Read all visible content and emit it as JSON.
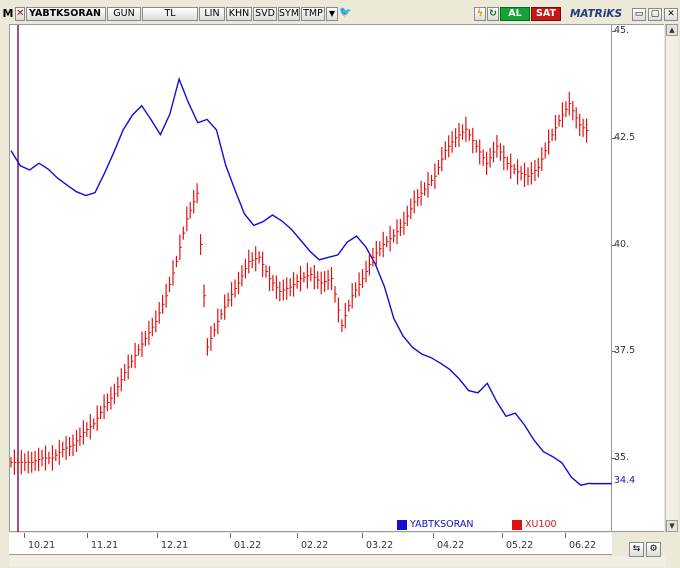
{
  "toolbar": {
    "menu_label": "M",
    "symbol": "YABTKSORAN",
    "period": "GUN",
    "currency": "TL",
    "scale": "LIN",
    "btn_khn": "KHN",
    "btn_svd": "SVD",
    "btn_sym": "SYM",
    "btn_tmp": "TMP",
    "buy_label": "AL",
    "sell_label": "SAT",
    "brand": "MATRiKS"
  },
  "colors": {
    "series1": "#1010d0",
    "series2": "#e01010",
    "buy": "#11a335",
    "sell": "#c41818"
  },
  "chart_data": {
    "type": "line",
    "x_tick_labels": [
      "10.21",
      "11.21",
      "12.21",
      "01.22",
      "02.22",
      "03.22",
      "04.22",
      "05.22",
      "06.22"
    ],
    "y_tick_labels": [
      "45.",
      "42.5",
      "40.",
      "37.5",
      "35."
    ],
    "ylim": [
      33.5,
      45.0
    ],
    "last_value_label": "34.4",
    "series": [
      {
        "name": "YABTKSORAN",
        "color": "#1010d0",
        "values": [
          42.2,
          41.8,
          41.7,
          41.9,
          41.8,
          41.6,
          41.4,
          41.2,
          41.1,
          41.2,
          41.7,
          42.2,
          42.7,
          43.0,
          43.2,
          42.9,
          42.6,
          43.1,
          43.9,
          43.3,
          42.8,
          42.9,
          42.7,
          41.9,
          41.3,
          40.7,
          40.4,
          40.5,
          40.7,
          40.6,
          40.4,
          40.1,
          39.8,
          39.6,
          39.7,
          39.8,
          40.1,
          40.2,
          39.9,
          39.5,
          39.0,
          38.3,
          37.9,
          37.6,
          37.4,
          37.3,
          37.2,
          37.1,
          36.9,
          36.6,
          36.5,
          36.7,
          36.3,
          36.0,
          36.1,
          35.8,
          35.4,
          35.1,
          35.0,
          34.9,
          34.6,
          34.4,
          34.4
        ],
        "x": [
          0,
          2,
          4,
          6,
          8,
          10,
          12,
          14,
          16,
          18,
          20,
          22,
          24,
          26,
          28,
          30,
          32,
          34,
          36,
          38,
          40,
          42,
          44,
          46,
          48,
          50,
          52,
          54,
          56,
          58,
          60,
          62,
          64,
          66,
          68,
          70,
          72,
          74,
          76,
          78,
          80,
          82,
          84,
          86,
          88,
          90,
          92,
          94,
          96,
          98,
          100,
          102,
          104,
          106,
          108,
          110,
          112,
          114,
          116,
          118,
          120,
          122,
          124
        ]
      },
      {
        "name": "XU100",
        "color": "#e01010",
        "values": [
          34.9,
          34.9,
          34.9,
          35.0,
          35.0,
          35.2,
          35.3,
          35.6,
          35.8,
          36.2,
          36.5,
          37.0,
          37.4,
          37.8,
          38.2,
          38.8,
          39.6,
          40.6,
          41.2,
          37.6,
          38.2,
          38.7,
          39.1,
          39.6,
          39.7,
          39.2,
          38.9,
          39.0,
          39.2,
          39.3,
          39.1,
          39.2,
          38.1,
          38.8,
          39.2,
          39.7,
          40.0,
          40.2,
          40.5,
          41.0,
          41.3,
          41.6,
          42.2,
          42.5,
          42.7,
          42.3,
          41.9,
          42.3,
          41.9,
          41.7,
          41.6,
          41.8,
          42.4,
          42.9,
          43.3,
          42.8,
          42.6
        ]
      }
    ]
  }
}
